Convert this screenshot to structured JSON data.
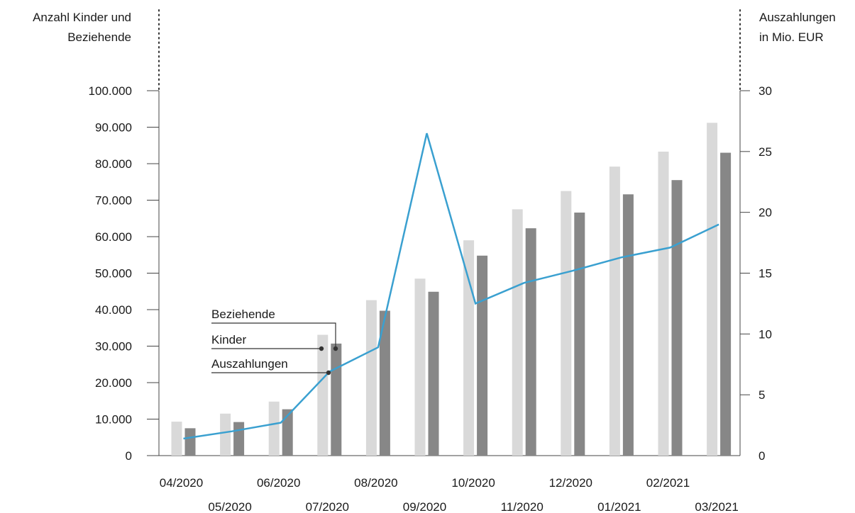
{
  "chart_data": {
    "type": "bar+line",
    "title": "",
    "y_left_label": [
      "Anzahl Kinder und",
      "Beziehende"
    ],
    "y_right_label": [
      "Auszahlungen",
      "in Mio. EUR"
    ],
    "y_left_ticks": [
      "0",
      "10.000",
      "20.000",
      "30.000",
      "40.000",
      "50.000",
      "60.000",
      "70.000",
      "80.000",
      "90.000",
      "100.000"
    ],
    "y_left_lim": [
      0,
      100000
    ],
    "y_right_ticks": [
      "0",
      "5",
      "10",
      "15",
      "20",
      "25",
      "30"
    ],
    "y_right_lim": [
      0,
      30
    ],
    "categories": [
      "04/2020",
      "05/2020",
      "06/2020",
      "07/2020",
      "08/2020",
      "09/2020",
      "10/2020",
      "11/2020",
      "12/2020",
      "01/2021",
      "02/2021",
      "03/2021"
    ],
    "series": [
      {
        "name": "Kinder",
        "type": "bar",
        "axis": "left",
        "color": "#d9d9d9",
        "values": [
          9300,
          11500,
          14800,
          33100,
          42600,
          48500,
          59000,
          67500,
          72500,
          79200,
          83300,
          91200
        ]
      },
      {
        "name": "Beziehende",
        "type": "bar",
        "axis": "left",
        "color": "#878787",
        "values": [
          7500,
          9200,
          12700,
          30700,
          39700,
          44900,
          54800,
          62300,
          66600,
          71600,
          75500,
          83000
        ]
      },
      {
        "name": "Auszahlungen",
        "type": "line",
        "axis": "right",
        "color": "#3aa0d0",
        "values": [
          1.4,
          2.0,
          2.7,
          6.9,
          8.9,
          26.5,
          12.5,
          14.2,
          15.2,
          16.3,
          17.1,
          19.0
        ]
      }
    ],
    "legend": "inline-callouts",
    "grid": false
  }
}
